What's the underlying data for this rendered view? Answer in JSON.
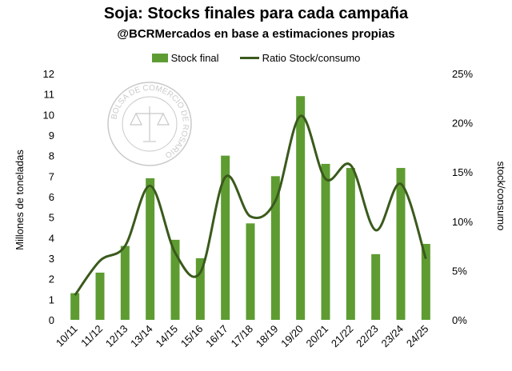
{
  "chart_data": {
    "type": "bar",
    "title": "Soja: Stocks finales para cada campaña",
    "subtitle": "@BCRMercados en base a estimaciones propias",
    "categories": [
      "10/11",
      "11/12",
      "12/13",
      "13/14",
      "14/15",
      "15/16",
      "16/17",
      "17/18",
      "18/19",
      "19/20",
      "20/21",
      "21/22",
      "22/23",
      "23/24",
      "24/25"
    ],
    "series": [
      {
        "name": "Stock final",
        "kind": "bar",
        "axis": "left",
        "color": "#5e9c32",
        "values": [
          1.3,
          2.3,
          3.6,
          6.9,
          3.9,
          3.0,
          8.0,
          4.7,
          7.0,
          10.9,
          7.6,
          7.4,
          3.2,
          7.4,
          3.7
        ]
      },
      {
        "name": "Ratio Stock/consumo",
        "kind": "line",
        "axis": "right",
        "color": "#3a5a1c",
        "values": [
          2.5,
          6.0,
          7.5,
          13.6,
          6.8,
          4.8,
          14.5,
          10.5,
          12.1,
          20.7,
          14.3,
          15.7,
          9.1,
          13.8,
          6.2
        ]
      }
    ],
    "ylabel": "Millones de toneladas",
    "ylim": [
      0,
      12
    ],
    "y_ticks": [
      "0",
      "1",
      "2",
      "3",
      "4",
      "5",
      "6",
      "7",
      "8",
      "9",
      "10",
      "11",
      "12"
    ],
    "y2label": "stock/consumo",
    "y2lim": [
      0,
      25
    ],
    "y2_ticks": [
      "0%",
      "5%",
      "10%",
      "15%",
      "20%",
      "25%"
    ],
    "grid": false,
    "legend_position": "top"
  },
  "watermark": {
    "text_top": "BOLSA DE COMERCIO DE ROSARIO",
    "icon": "scales-of-justice-icon"
  }
}
